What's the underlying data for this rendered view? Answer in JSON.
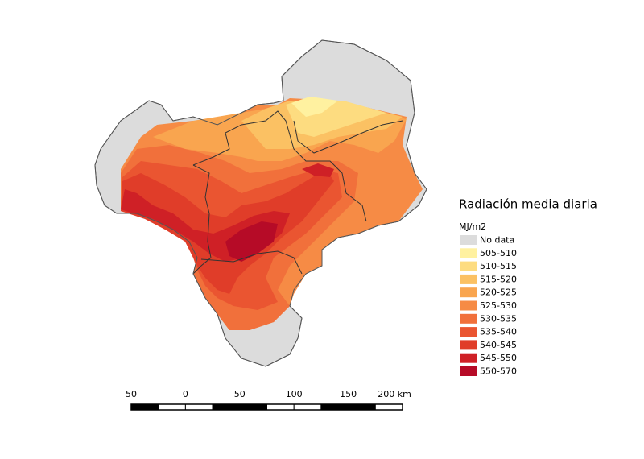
{
  "legend": {
    "title": "Radiación media diaria",
    "unit": "MJ/m2",
    "items": [
      {
        "label": "No data",
        "color": "#dcdcdc"
      },
      {
        "label": "505-510",
        "color": "#fff1a0"
      },
      {
        "label": "510-515",
        "color": "#fddc80"
      },
      {
        "label": "515-520",
        "color": "#fbc163"
      },
      {
        "label": "520-525",
        "color": "#f9a54f"
      },
      {
        "label": "525-530",
        "color": "#f68b45"
      },
      {
        "label": "530-535",
        "color": "#f1703b"
      },
      {
        "label": "535-540",
        "color": "#ea5531"
      },
      {
        "label": "540-545",
        "color": "#e03d29"
      },
      {
        "label": "545-550",
        "color": "#cf2026"
      },
      {
        "label": "550-570",
        "color": "#b60b27"
      }
    ]
  },
  "scale_bar": {
    "labels": [
      "50",
      "0",
      "50",
      "100",
      "150",
      "200 km"
    ]
  }
}
